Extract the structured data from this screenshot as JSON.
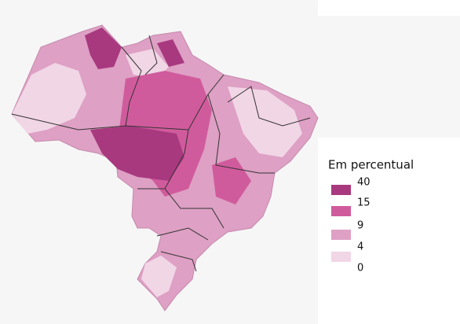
{
  "legend": {
    "title": "Em percentual",
    "breaks": [
      40,
      15,
      9,
      4,
      0
    ],
    "colors": [
      "#a8397f",
      "#d05b9c",
      "#dea0c4",
      "#f1d6e6"
    ]
  }
}
